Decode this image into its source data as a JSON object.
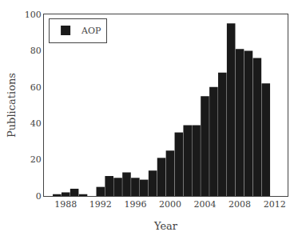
{
  "chart_data": {
    "type": "bar",
    "x": [
      1986,
      1987,
      1988,
      1989,
      1990,
      1991,
      1992,
      1993,
      1994,
      1995,
      1996,
      1997,
      1998,
      1999,
      2000,
      2001,
      2002,
      2003,
      2004,
      2005,
      2006,
      2007,
      2008,
      2009,
      2010,
      2011,
      2012
    ],
    "series": [
      {
        "name": "AOP",
        "color": "#1a1a1a",
        "values": [
          0,
          1,
          2,
          4,
          1,
          0,
          5,
          11,
          10,
          13,
          10,
          9,
          14,
          21,
          25,
          35,
          39,
          39,
          55,
          60,
          68,
          95,
          81,
          80,
          76,
          62,
          0
        ]
      }
    ],
    "xlabel": "Year",
    "ylabel": "Publications",
    "xlim": [
      1985.5,
      2013.5
    ],
    "ylim": [
      0,
      100
    ],
    "xticks": [
      1988,
      1992,
      1996,
      2000,
      2004,
      2008,
      2012
    ],
    "yticks": [
      0,
      20,
      40,
      60,
      80,
      100
    ],
    "legend": "upper left",
    "grid": false
  }
}
